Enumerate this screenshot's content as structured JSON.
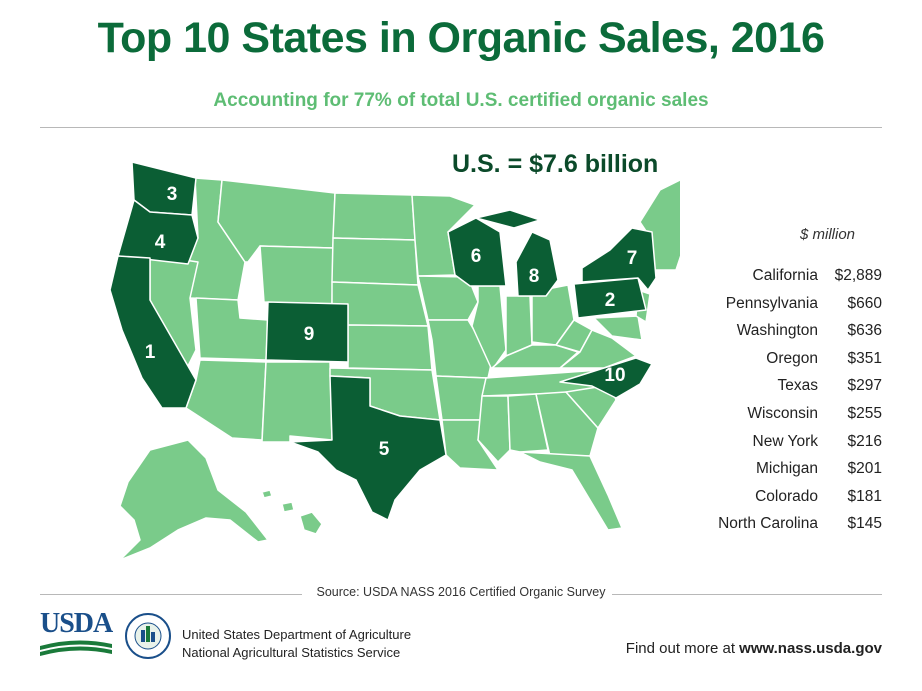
{
  "title": "Top 10 States in Organic Sales, 2016",
  "subtitle": "Accounting for 77% of total U.S. certified organic sales",
  "total_label": "U.S. = $7.6 billion",
  "units_label": "$ million",
  "colors": {
    "title": "#0b6b3a",
    "subtitle": "#5ebd74",
    "top_state": "#0b5e34",
    "other_state": "#7acb8a",
    "border": "#ffffff"
  },
  "rankings": [
    {
      "rank": "1",
      "state": "California",
      "value": "$2,889"
    },
    {
      "rank": "2",
      "state": "Pennsylvania",
      "value": "$660"
    },
    {
      "rank": "3",
      "state": "Washington",
      "value": "$636"
    },
    {
      "rank": "4",
      "state": "Oregon",
      "value": "$351"
    },
    {
      "rank": "5",
      "state": "Texas",
      "value": "$297"
    },
    {
      "rank": "6",
      "state": "Wisconsin",
      "value": "$255"
    },
    {
      "rank": "7",
      "state": "New York",
      "value": "$216"
    },
    {
      "rank": "8",
      "state": "Michigan",
      "value": "$201"
    },
    {
      "rank": "9",
      "state": "Colorado",
      "value": "$181"
    },
    {
      "rank": "10",
      "state": "North Carolina",
      "value": "$145"
    }
  ],
  "source": "Source: USDA NASS 2016 Certified Organic Survey",
  "footer": {
    "logo_text": "USDA",
    "seal_text": "AGRICULTURE COUNTS",
    "agency_line1": "United States Department of Agriculture",
    "agency_line2": "National Agricultural Statistics Service",
    "more_prefix": "Find out more at ",
    "more_url": "www.nass.usda.gov"
  }
}
